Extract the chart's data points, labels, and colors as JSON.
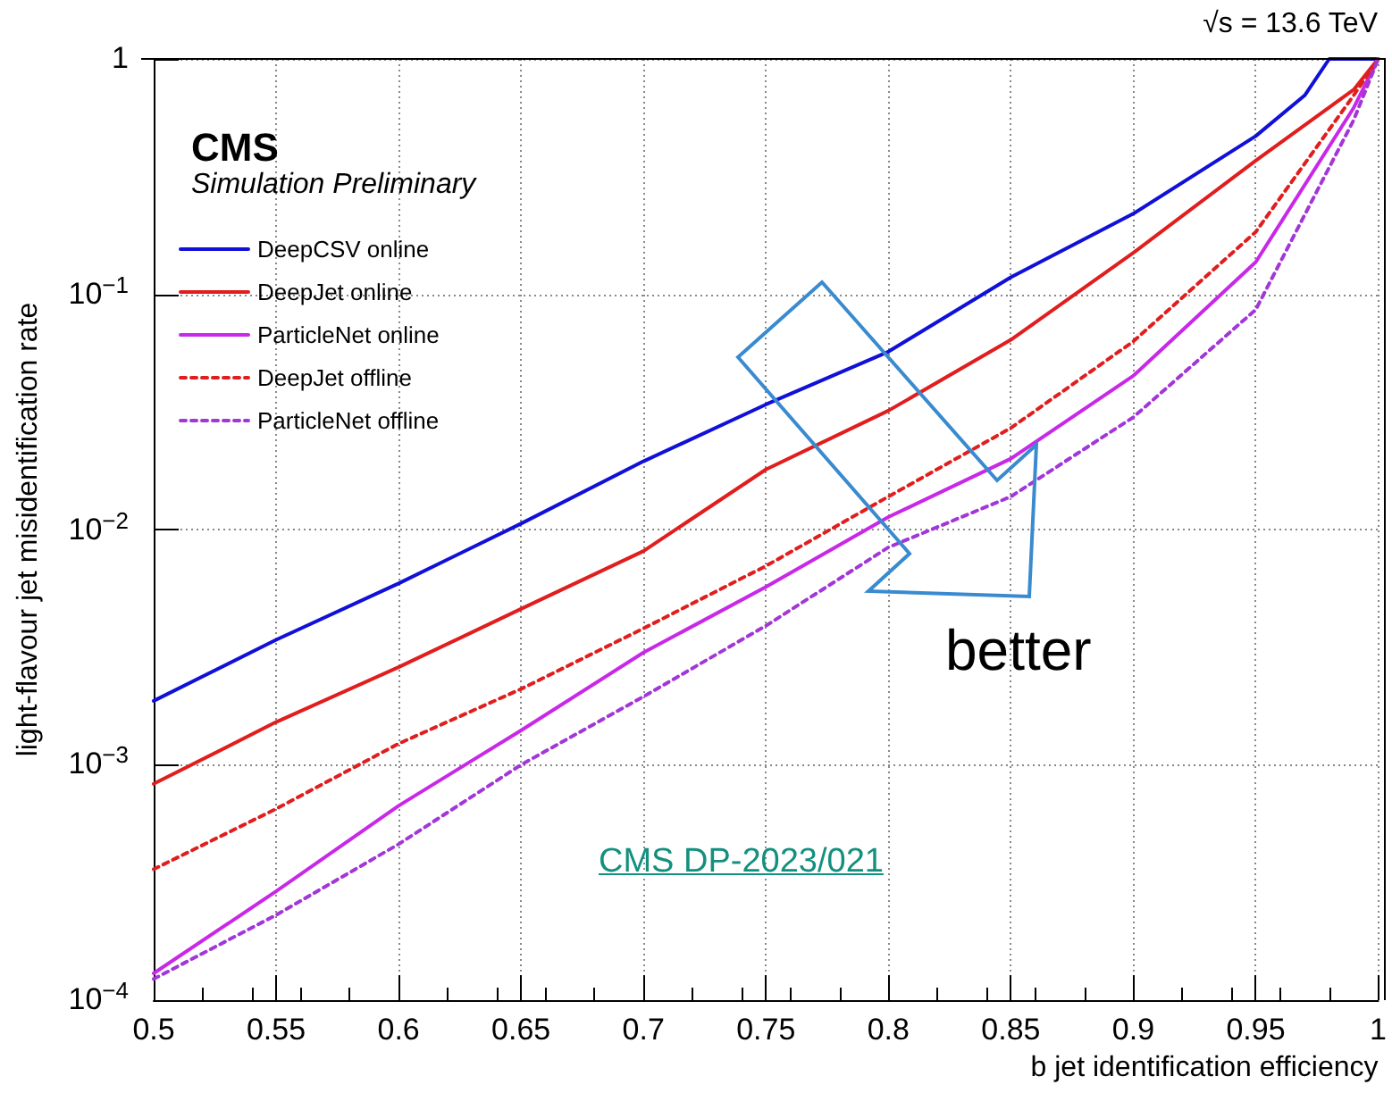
{
  "chart_data": {
    "type": "line",
    "title": "CMS",
    "subtitle": "Simulation Preliminary",
    "xlabel": "b jet identification efficiency",
    "ylabel": "light-flavour jet misidentification rate",
    "annotations": [
      "√s = 13.6 TeV",
      "better",
      "CMS DP-2023/021"
    ],
    "x": [
      0.5,
      0.55,
      0.6,
      0.65,
      0.7,
      0.75,
      0.8,
      0.85,
      0.9,
      0.95,
      0.99,
      1.0
    ],
    "series": [
      {
        "name": "DeepCSV online",
        "color": "#1010d8",
        "line_style": "solid",
        "x": [
          0.5,
          0.55,
          0.6,
          0.65,
          0.7,
          0.75,
          0.8,
          0.85,
          0.9,
          0.95,
          0.97,
          0.98,
          1.0
        ],
        "values": [
          0.00187,
          0.0034,
          0.0059,
          0.0106,
          0.0195,
          0.034,
          0.057,
          0.118,
          0.22,
          0.47,
          0.7,
          1.0,
          1.0
        ]
      },
      {
        "name": "DeepJet online",
        "color": "#e01e1e",
        "line_style": "solid",
        "values": [
          0.00083,
          0.00152,
          0.0026,
          0.0046,
          0.0081,
          0.018,
          0.032,
          0.064,
          0.15,
          0.37,
          0.74,
          1.0
        ]
      },
      {
        "name": "ParticleNet online",
        "color": "#c828e8",
        "line_style": "solid",
        "values": [
          0.00013,
          0.00029,
          0.00067,
          0.0014,
          0.003,
          0.0057,
          0.0113,
          0.02,
          0.045,
          0.137,
          0.62,
          1.0
        ]
      },
      {
        "name": "DeepJet offline",
        "color": "#e01e1e",
        "line_style": "dotted",
        "values": [
          0.00036,
          0.00065,
          0.00123,
          0.0021,
          0.0038,
          0.007,
          0.0138,
          0.027,
          0.063,
          0.184,
          0.7,
          1.0
        ]
      },
      {
        "name": "ParticleNet offline",
        "color": "#a236d8",
        "line_style": "dotted",
        "values": [
          0.000123,
          0.00023,
          0.00046,
          0.001,
          0.00195,
          0.0039,
          0.0084,
          0.0138,
          0.03,
          0.086,
          0.55,
          1.0
        ]
      }
    ],
    "xlim": [
      0.5,
      1.0
    ],
    "xticks": [
      0.5,
      0.55,
      0.6,
      0.65,
      0.7,
      0.75,
      0.8,
      0.85,
      0.9,
      0.95,
      1
    ],
    "ylim": [
      0.0001,
      1
    ],
    "yticks": [
      {
        "value": 0.0001,
        "label": "10$^{−4}$"
      },
      {
        "value": 0.001,
        "label": "10$^{−3}$"
      },
      {
        "value": 0.01,
        "label": "10$^{−2}$"
      },
      {
        "value": 0.1,
        "label": "10$^{−1}$"
      },
      1
    ],
    "log": "y",
    "grid": true,
    "legend": "top left",
    "marker": "none"
  }
}
